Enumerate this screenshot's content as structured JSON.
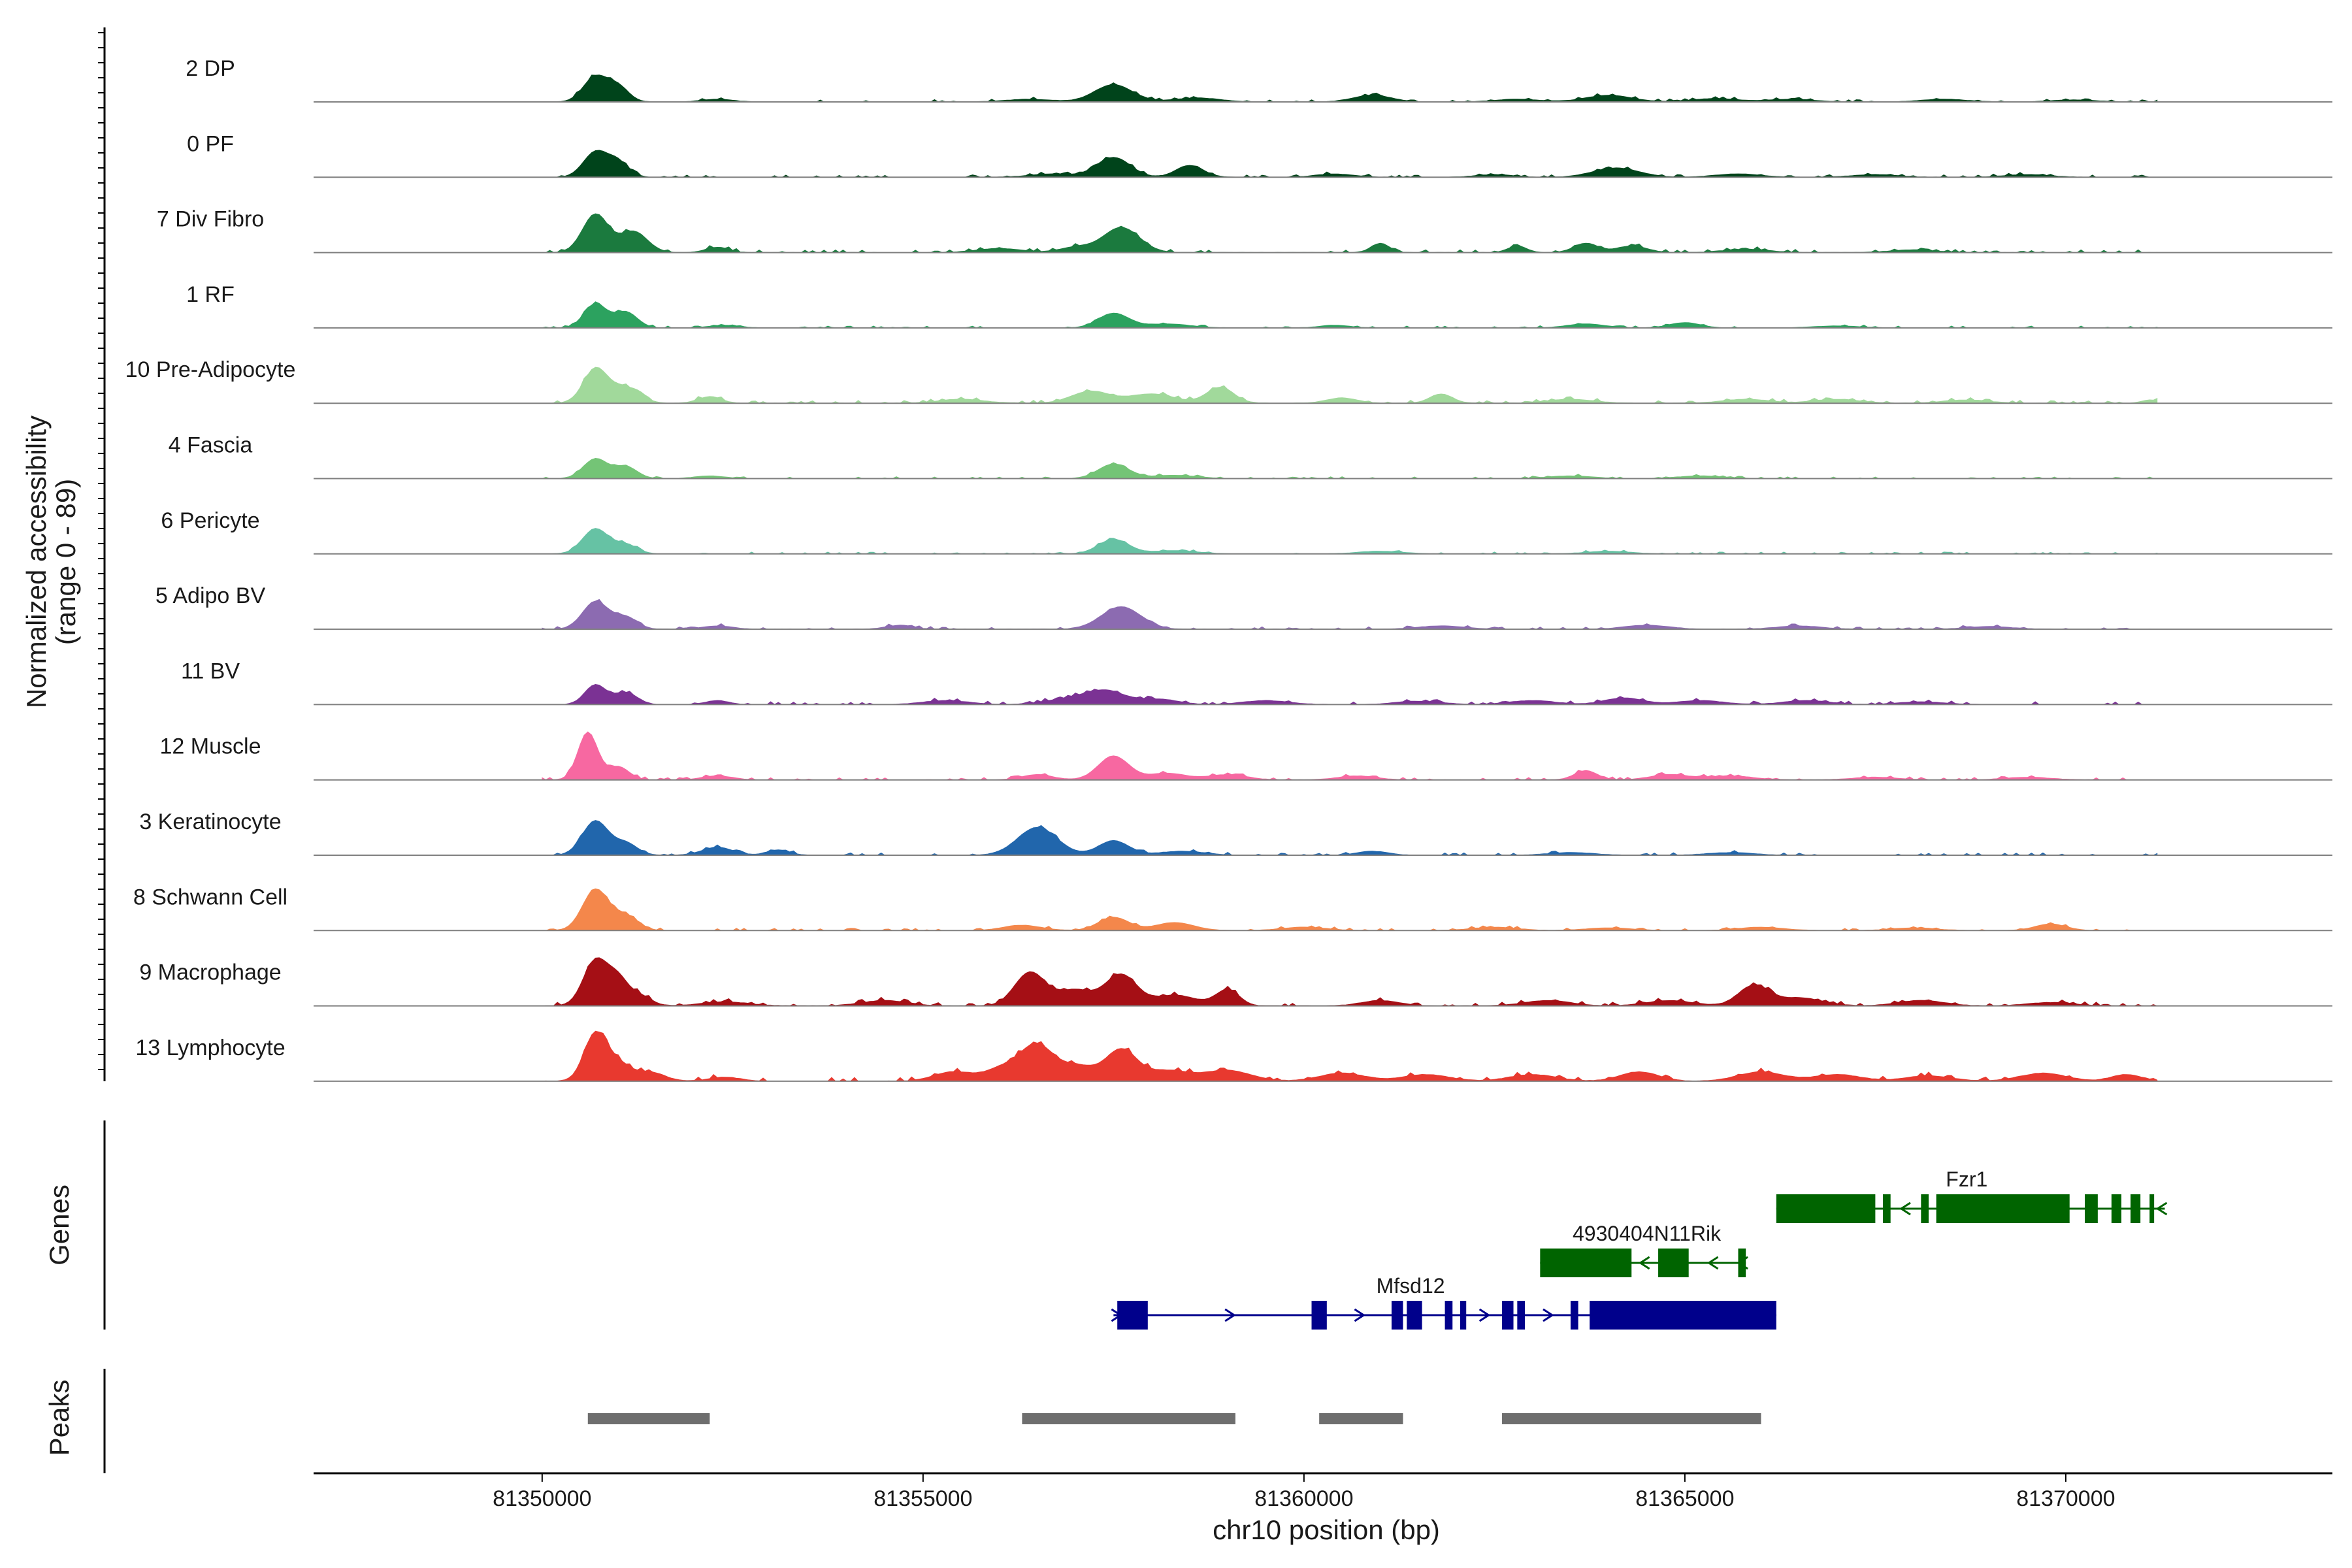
{
  "chart_data": {
    "type": "area",
    "title": "",
    "chromosome": "chr10",
    "xlabel": "chr10 position (bp)",
    "ylabel_line1": "Normalized accessibility",
    "ylabel_line2": "(range 0 - 89)",
    "xlim": [
      81347000,
      81373500
    ],
    "x_ticks": [
      81350000,
      81355000,
      81360000,
      81365000,
      81370000
    ],
    "x_tick_labels": [
      "81350000",
      "81355000",
      "81360000",
      "81365000",
      "81370000"
    ],
    "track_start": 81350000,
    "track_end": 81371200,
    "bin_size": 50,
    "y_range": [
      0,
      89
    ],
    "tracks": [
      {
        "label": "2 DP",
        "color": "#00441b",
        "peaks": [
          [
            81350700,
            38,
            160
          ],
          [
            81351000,
            22,
            140
          ],
          [
            81352300,
            4,
            200
          ],
          [
            81356400,
            4,
            300
          ],
          [
            81357500,
            26,
            250
          ],
          [
            81358600,
            6,
            300
          ],
          [
            81360900,
            10,
            250
          ],
          [
            81362800,
            4,
            300
          ],
          [
            81364000,
            10,
            300
          ],
          [
            81365400,
            5,
            300
          ],
          [
            81366400,
            4,
            300
          ],
          [
            81368400,
            4,
            300
          ],
          [
            81370100,
            3,
            300
          ]
        ],
        "noise": 2.5
      },
      {
        "label": "0 PF",
        "color": "#00441b",
        "peaks": [
          [
            81350700,
            38,
            160
          ],
          [
            81351000,
            22,
            140
          ],
          [
            81356700,
            5,
            300
          ],
          [
            81357500,
            30,
            220
          ],
          [
            81358500,
            18,
            180
          ],
          [
            81360400,
            5,
            250
          ],
          [
            81362500,
            4,
            250
          ],
          [
            81364100,
            14,
            300
          ],
          [
            81365700,
            5,
            300
          ],
          [
            81367500,
            4,
            300
          ],
          [
            81369500,
            4,
            300
          ]
        ],
        "noise": 2.5
      },
      {
        "label": "7 Div Fibro",
        "color": "#1b7a3e",
        "peaks": [
          [
            81350700,
            58,
            170
          ],
          [
            81351200,
            32,
            180
          ],
          [
            81352300,
            8,
            150
          ],
          [
            81356000,
            6,
            300
          ],
          [
            81357000,
            8,
            200
          ],
          [
            81357600,
            38,
            240
          ],
          [
            81361000,
            14,
            120
          ],
          [
            81362800,
            10,
            120
          ],
          [
            81363700,
            14,
            160
          ],
          [
            81364300,
            10,
            200
          ],
          [
            81365800,
            5,
            300
          ],
          [
            81368000,
            4,
            300
          ]
        ],
        "noise": 3
      },
      {
        "label": "1 RF",
        "color": "#2ca25f",
        "peaks": [
          [
            81350700,
            36,
            150
          ],
          [
            81351100,
            24,
            150
          ],
          [
            81352400,
            4,
            200
          ],
          [
            81357500,
            22,
            200
          ],
          [
            81358200,
            6,
            300
          ],
          [
            81360400,
            4,
            200
          ],
          [
            81363700,
            6,
            250
          ],
          [
            81365000,
            8,
            200
          ],
          [
            81367000,
            3,
            300
          ]
        ],
        "noise": 2
      },
      {
        "label": "10 Pre-Adipocyte",
        "color": "#a1d99b",
        "peaks": [
          [
            81350700,
            52,
            160
          ],
          [
            81351100,
            24,
            180
          ],
          [
            81352200,
            10,
            150
          ],
          [
            81355500,
            6,
            300
          ],
          [
            81357200,
            18,
            250
          ],
          [
            81358000,
            14,
            300
          ],
          [
            81358900,
            24,
            180
          ],
          [
            81360500,
            8,
            200
          ],
          [
            81361800,
            14,
            150
          ],
          [
            81363500,
            6,
            300
          ],
          [
            81365800,
            6,
            300
          ],
          [
            81367000,
            6,
            300
          ],
          [
            81368700,
            5,
            300
          ],
          [
            81371100,
            5,
            100
          ]
        ],
        "noise": 3
      },
      {
        "label": "4 Fascia",
        "color": "#74c476",
        "peaks": [
          [
            81350700,
            30,
            160
          ],
          [
            81351100,
            18,
            150
          ],
          [
            81352200,
            4,
            200
          ],
          [
            81357500,
            22,
            200
          ],
          [
            81358300,
            5,
            300
          ],
          [
            81363500,
            4,
            300
          ],
          [
            81365200,
            4,
            300
          ]
        ],
        "noise": 2
      },
      {
        "label": "6 Pericyte",
        "color": "#66c2a4",
        "peaks": [
          [
            81350700,
            38,
            170
          ],
          [
            81351100,
            14,
            150
          ],
          [
            81357500,
            22,
            200
          ],
          [
            81358300,
            5,
            300
          ],
          [
            81361000,
            4,
            300
          ],
          [
            81364000,
            4,
            300
          ]
        ],
        "noise": 2
      },
      {
        "label": "5 Adipo BV",
        "color": "#8c6bb1",
        "peaks": [
          [
            81350700,
            42,
            170
          ],
          [
            81351100,
            18,
            150
          ],
          [
            81352300,
            5,
            200
          ],
          [
            81354700,
            6,
            180
          ],
          [
            81357600,
            34,
            260
          ],
          [
            81361800,
            5,
            300
          ],
          [
            81364500,
            6,
            300
          ],
          [
            81366500,
            5,
            300
          ],
          [
            81369000,
            4,
            300
          ]
        ],
        "noise": 2.5
      },
      {
        "label": "11 BV",
        "color": "#7b3294",
        "peaks": [
          [
            81350700,
            30,
            140
          ],
          [
            81351100,
            18,
            150
          ],
          [
            81352300,
            6,
            150
          ],
          [
            81355300,
            6,
            300
          ],
          [
            81356900,
            8,
            300
          ],
          [
            81357400,
            20,
            260
          ],
          [
            81358100,
            8,
            250
          ],
          [
            81359500,
            6,
            300
          ],
          [
            81361500,
            5,
            300
          ],
          [
            81363000,
            6,
            300
          ],
          [
            81364200,
            10,
            250
          ],
          [
            81365200,
            6,
            300
          ],
          [
            81366600,
            6,
            300
          ],
          [
            81368100,
            4,
            300
          ]
        ],
        "noise": 3
      },
      {
        "label": "12 Muscle",
        "color": "#f768a1",
        "peaks": [
          [
            81350600,
            72,
            130
          ],
          [
            81351000,
            20,
            140
          ],
          [
            81352300,
            6,
            200
          ],
          [
            81356500,
            8,
            200
          ],
          [
            81357500,
            36,
            200
          ],
          [
            81358200,
            10,
            250
          ],
          [
            81359000,
            8,
            250
          ],
          [
            81360700,
            6,
            250
          ],
          [
            81363700,
            14,
            150
          ],
          [
            81364800,
            8,
            250
          ],
          [
            81365600,
            6,
            300
          ],
          [
            81367500,
            4,
            300
          ],
          [
            81369500,
            4,
            300
          ]
        ],
        "noise": 2.5
      },
      {
        "label": "3 Keratinocyte",
        "color": "#2166ac",
        "peaks": [
          [
            81350700,
            52,
            170
          ],
          [
            81351100,
            18,
            150
          ],
          [
            81352300,
            12,
            200
          ],
          [
            81353100,
            8,
            150
          ],
          [
            81356500,
            42,
            260
          ],
          [
            81357500,
            22,
            200
          ],
          [
            81358400,
            6,
            300
          ],
          [
            81360900,
            6,
            200
          ],
          [
            81363500,
            4,
            300
          ],
          [
            81365600,
            4,
            300
          ]
        ],
        "noise": 2.5
      },
      {
        "label": "8 Schwann Cell",
        "color": "#f4874b",
        "peaks": [
          [
            81350700,
            62,
            170
          ],
          [
            81351100,
            22,
            160
          ],
          [
            81356300,
            8,
            250
          ],
          [
            81357500,
            20,
            200
          ],
          [
            81358300,
            12,
            250
          ],
          [
            81360000,
            5,
            300
          ],
          [
            81362500,
            5,
            300
          ],
          [
            81364000,
            4,
            300
          ],
          [
            81366000,
            5,
            300
          ],
          [
            81368000,
            4,
            300
          ],
          [
            81369800,
            10,
            200
          ]
        ],
        "noise": 2.5
      },
      {
        "label": "9 Macrophage",
        "color": "#a50f15",
        "peaks": [
          [
            81350700,
            68,
            160
          ],
          [
            81351000,
            38,
            140
          ],
          [
            81351300,
            14,
            140
          ],
          [
            81352400,
            6,
            300
          ],
          [
            81354500,
            8,
            300
          ],
          [
            81356400,
            50,
            200
          ],
          [
            81357000,
            24,
            250
          ],
          [
            81357600,
            46,
            200
          ],
          [
            81358300,
            16,
            300
          ],
          [
            81359000,
            24,
            150
          ],
          [
            81361000,
            8,
            250
          ],
          [
            81363200,
            8,
            300
          ],
          [
            81364800,
            8,
            300
          ],
          [
            81365900,
            30,
            200
          ],
          [
            81366500,
            12,
            300
          ],
          [
            81368100,
            8,
            300
          ],
          [
            81369800,
            5,
            300
          ]
        ],
        "noise": 3.5
      },
      {
        "label": "13 Lymphocyte",
        "color": "#e8392f",
        "peaks": [
          [
            81350700,
            72,
            150
          ],
          [
            81351000,
            24,
            150
          ],
          [
            81351400,
            14,
            200
          ],
          [
            81352400,
            6,
            200
          ],
          [
            81355400,
            14,
            250
          ],
          [
            81356100,
            22,
            250
          ],
          [
            81356500,
            48,
            200
          ],
          [
            81357000,
            24,
            250
          ],
          [
            81357600,
            46,
            200
          ],
          [
            81358200,
            16,
            300
          ],
          [
            81359000,
            16,
            300
          ],
          [
            81360500,
            12,
            300
          ],
          [
            81361600,
            10,
            300
          ],
          [
            81363000,
            10,
            300
          ],
          [
            81364400,
            14,
            250
          ],
          [
            81366000,
            14,
            300
          ],
          [
            81367000,
            10,
            300
          ],
          [
            81368200,
            8,
            300
          ],
          [
            81369700,
            12,
            300
          ],
          [
            81370800,
            10,
            200
          ]
        ],
        "noise": 4
      }
    ],
    "genes_label": "Genes",
    "genes": [
      {
        "name": "Fzr1",
        "strand": "-",
        "start": 81366200,
        "end": 81371300,
        "color": "#006400",
        "row": 0,
        "label_x": 81368700,
        "exons": [
          [
            81366200,
            81367500
          ],
          [
            81367600,
            81367700
          ],
          [
            81368100,
            81368200
          ],
          [
            81368300,
            81370050
          ],
          [
            81370250,
            81370420
          ],
          [
            81370600,
            81370730
          ],
          [
            81370850,
            81370980
          ],
          [
            81371100,
            81371160
          ]
        ]
      },
      {
        "name": "4930404N11Rik",
        "strand": "-",
        "start": 81363100,
        "end": 81365800,
        "color": "#006400",
        "row": 1,
        "label_x": 81364500,
        "exons": [
          [
            81363100,
            81364300
          ],
          [
            81364650,
            81365050
          ],
          [
            81365700,
            81365800
          ]
        ]
      },
      {
        "name": "Mfsd12",
        "strand": "+",
        "start": 81357500,
        "end": 81366200,
        "color": "#00008b",
        "row": 2,
        "label_x": 81361400,
        "exons": [
          [
            81357550,
            81357950
          ],
          [
            81360100,
            81360300
          ],
          [
            81361150,
            81361300
          ],
          [
            81361350,
            81361550
          ],
          [
            81361850,
            81361950
          ],
          [
            81362050,
            81362130
          ],
          [
            81362600,
            81362750
          ],
          [
            81362800,
            81362900
          ],
          [
            81363500,
            81363600
          ],
          [
            81363750,
            81366200
          ]
        ]
      }
    ],
    "peaks_label": "Peaks",
    "peak_regions": [
      [
        81350600,
        81352200
      ],
      [
        81356300,
        81359100
      ],
      [
        81360200,
        81361300
      ],
      [
        81362600,
        81366000
      ]
    ]
  }
}
